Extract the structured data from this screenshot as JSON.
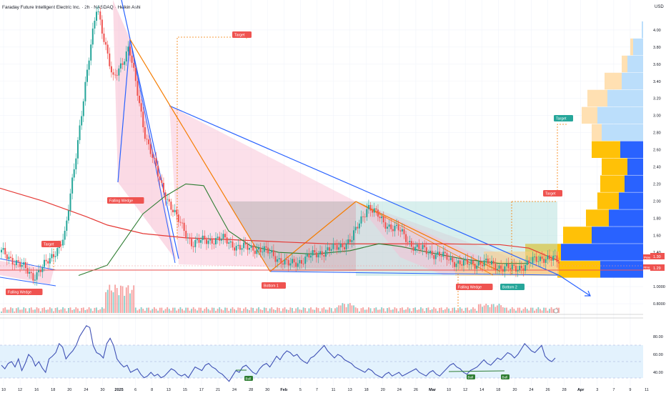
{
  "header": {
    "title": "Faraday Future Intelligent Electric Inc. · 2h · NASDAQ · Heikin Ashi"
  },
  "colors": {
    "up": "#26a69a",
    "down": "#ef5350",
    "wedge_line": "#2962ff",
    "pattern_line": "#f57c00",
    "pattern_fill": "#f8bbd0",
    "target_fill": "#b2dfdb",
    "grey_fill": "#9e9e9e",
    "ma_red": "#e53935",
    "ma_green": "#2e7d32",
    "rsi_line": "#3f51b5",
    "rsi_band": "#e3f2fd",
    "vp_up": "#2962ff",
    "vp_down": "#ffc107",
    "vp_up_light": "#bbdefb",
    "vp_down_light": "#ffe0b2"
  },
  "chart_data": {
    "type": "line",
    "title": "Faraday Future Intelligent Electric Inc. · 2h · NASDAQ · Heikin Ashi",
    "price_axis": {
      "unit": "USD",
      "ticks": [
        "4.00",
        "3.80",
        "3.60",
        "3.40",
        "3.20",
        "3.00",
        "2.80",
        "2.60",
        "2.40",
        "2.20",
        "2.00",
        "1.80",
        "1.60",
        "1.40",
        "1.20",
        "1.0000",
        "0.8000"
      ],
      "ylim": [
        0.7,
        4.3
      ]
    },
    "time_axis": {
      "ticks": [
        "10",
        "12",
        "16",
        "18",
        "20",
        "24",
        "30",
        "2025",
        "6",
        "8",
        "13",
        "15",
        "17",
        "21",
        "24",
        "28",
        "30",
        "Feb",
        "5",
        "7",
        "11",
        "13",
        "18",
        "20",
        "24",
        "26",
        "Mar",
        "10",
        "12",
        "14",
        "18",
        "20",
        "24",
        "26",
        "28",
        "Apr",
        "3",
        "7",
        "9",
        "11"
      ]
    },
    "price_series": [
      {
        "x": "Dec 10",
        "y": 1.4
      },
      {
        "x": "Dec 16",
        "y": 1.28
      },
      {
        "x": "Dec 20",
        "y": 1.12
      },
      {
        "x": "Dec 24",
        "y": 1.3
      },
      {
        "x": "Dec 27",
        "y": 1.6
      },
      {
        "x": "Dec 30",
        "y": 3.0
      },
      {
        "x": "Dec 31",
        "y": 4.3
      },
      {
        "x": "Jan 2",
        "y": 3.4
      },
      {
        "x": "Jan 3",
        "y": 3.8
      },
      {
        "x": "Jan 6",
        "y": 2.8
      },
      {
        "x": "Jan 8",
        "y": 2.2
      },
      {
        "x": "Jan 10",
        "y": 1.8
      },
      {
        "x": "Jan 13",
        "y": 1.5
      },
      {
        "x": "Jan 15",
        "y": 1.55
      },
      {
        "x": "Jan 17",
        "y": 1.55
      },
      {
        "x": "Jan 21",
        "y": 1.45
      },
      {
        "x": "Jan 24",
        "y": 1.45
      },
      {
        "x": "Jan 28",
        "y": 1.38
      },
      {
        "x": "Jan 30",
        "y": 1.25
      },
      {
        "x": "Feb 3",
        "y": 1.32
      },
      {
        "x": "Feb 7",
        "y": 1.4
      },
      {
        "x": "Feb 11",
        "y": 1.45
      },
      {
        "x": "Feb 13",
        "y": 1.55
      },
      {
        "x": "Feb 14",
        "y": 1.95
      },
      {
        "x": "Feb 18",
        "y": 1.75
      },
      {
        "x": "Feb 20",
        "y": 1.65
      },
      {
        "x": "Feb 24",
        "y": 1.45
      },
      {
        "x": "Feb 26",
        "y": 1.4
      },
      {
        "x": "Mar 3",
        "y": 1.33
      },
      {
        "x": "Mar 10",
        "y": 1.26
      },
      {
        "x": "Mar 12",
        "y": 1.28
      },
      {
        "x": "Mar 14",
        "y": 1.25
      },
      {
        "x": "Mar 18",
        "y": 1.2
      },
      {
        "x": "Mar 20",
        "y": 1.26
      },
      {
        "x": "Mar 24",
        "y": 1.35
      },
      {
        "x": "Mar 26",
        "y": 1.29
      }
    ],
    "last_price": {
      "label": "FFAI",
      "values": [
        "1.30",
        "1.29"
      ],
      "labels": [
        "Prev",
        "FFAI"
      ]
    },
    "annotations": [
      {
        "type": "label",
        "text": "Target",
        "color": "red"
      },
      {
        "type": "label",
        "text": "Target",
        "color": "red"
      },
      {
        "type": "label",
        "text": "Falling Wedge",
        "color": "red"
      },
      {
        "type": "label",
        "text": "Falling Wedge",
        "color": "red"
      },
      {
        "type": "label",
        "text": "Falling Wedge",
        "color": "red"
      },
      {
        "type": "label",
        "text": "Bottom 1",
        "color": "red"
      },
      {
        "type": "label",
        "text": "Bottom 2",
        "color": "green"
      },
      {
        "type": "label",
        "text": "Target",
        "color": "green"
      },
      {
        "type": "label",
        "text": "Target",
        "color": "red"
      }
    ],
    "rsi": {
      "axis_ticks": [
        "80.00",
        "60.00",
        "40.00"
      ],
      "ylim": [
        25,
        95
      ],
      "band": [
        30,
        70
      ],
      "values": [
        48,
        44,
        50,
        52,
        46,
        55,
        42,
        50,
        60,
        56,
        47,
        52,
        45,
        40,
        55,
        58,
        62,
        72,
        68,
        55,
        60,
        64,
        70,
        80,
        86,
        92,
        90,
        70,
        62,
        60,
        56,
        72,
        78,
        70,
        55,
        50,
        46,
        48,
        40,
        42,
        44,
        38,
        34,
        36,
        40,
        36,
        38,
        34,
        36,
        40,
        44,
        42,
        38,
        36,
        38,
        34,
        40,
        46,
        44,
        42,
        48,
        50,
        46,
        44,
        40,
        38,
        34,
        30,
        36,
        42,
        40,
        46,
        48,
        44,
        40,
        38,
        44,
        48,
        50,
        46,
        52,
        58,
        54,
        60,
        64,
        62,
        58,
        60,
        55,
        52,
        50,
        56,
        58,
        62,
        66,
        70,
        64,
        60,
        56,
        60,
        58,
        54,
        52,
        50,
        46,
        44,
        42,
        40,
        44,
        42,
        38,
        36,
        34,
        38,
        40,
        36,
        38,
        40,
        36,
        38,
        40,
        42,
        44,
        40,
        38,
        36,
        40,
        42,
        38,
        36,
        40,
        44,
        48,
        50,
        46,
        44,
        40,
        38,
        42,
        44,
        46,
        50,
        54,
        50,
        48,
        52,
        56,
        54,
        58,
        62,
        60,
        56,
        60,
        66,
        72,
        68,
        64,
        62,
        66,
        70,
        58,
        54,
        52,
        56
      ],
      "labels": [
        "Bull",
        "Bull",
        "Bull"
      ]
    },
    "volume_axis": {
      "ticks": []
    }
  }
}
